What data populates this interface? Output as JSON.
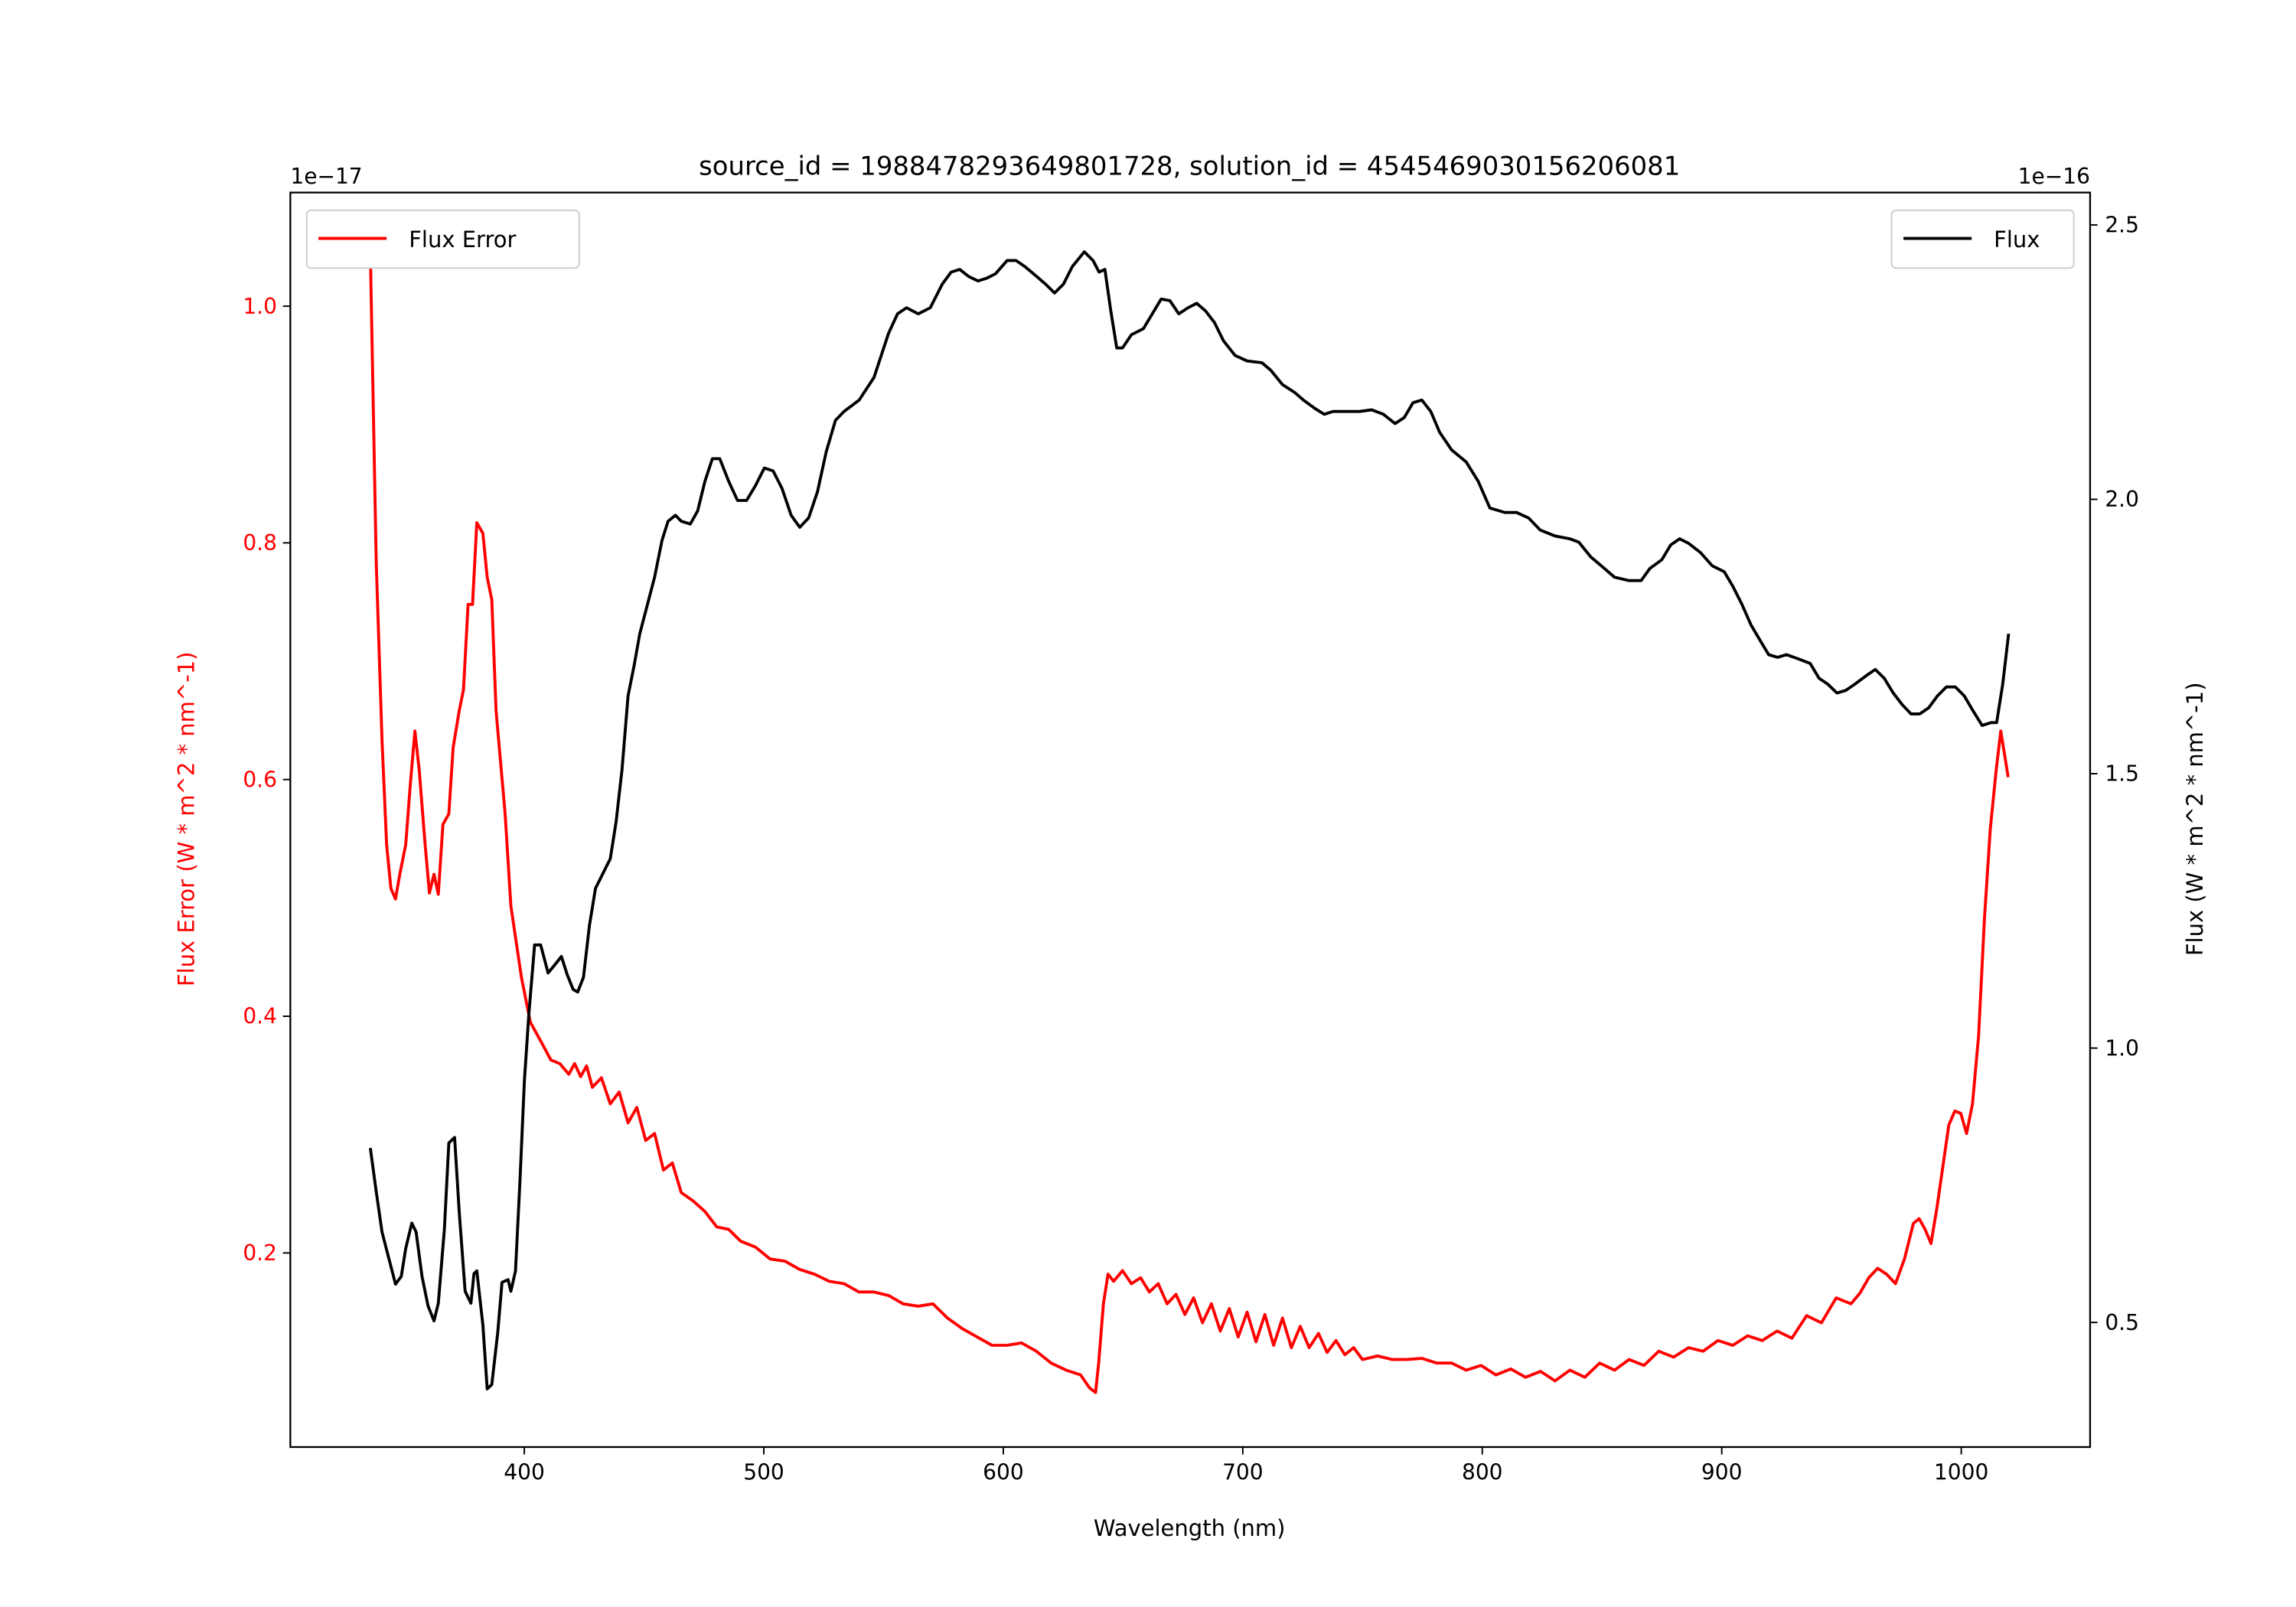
{
  "chart_data": {
    "type": "line",
    "title": "source_id = 1988478293649801728, solution_id = 4545469030156206081",
    "xlabel": "Wavelength (nm)",
    "ylabel_left": "Flux Error (W * m^2 * nm^-1)",
    "ylabel_right": "Flux (W * m^2 * nm^-1)",
    "left_offset_label": "1e−17",
    "right_offset_label": "1e−16",
    "xlim": [
      302.3,
      1053.8
    ],
    "ylim_left": [
      0.036,
      1.096
    ],
    "ylim_right": [
      0.273,
      2.559
    ],
    "xticks": [
      "400",
      "500",
      "600",
      "700",
      "800",
      "900",
      "1000"
    ],
    "yticks_left": [
      "0.2",
      "0.4",
      "0.6",
      "0.8",
      "1.0"
    ],
    "yticks_right": [
      "0.5",
      "1.0",
      "1.5",
      "2.0",
      "2.5"
    ],
    "grid": false,
    "colors": {
      "flux_error": "#ff0000",
      "flux": "#000000"
    },
    "legend_left": {
      "label": "Flux Error",
      "placement": "upper-left"
    },
    "legend_right": {
      "label": "Flux",
      "placement": "upper-right"
    },
    "series": [
      {
        "name": "Flux Error",
        "axis": "left",
        "color": "#ff0000",
        "x": [
          335.7,
          338.2,
          340.6,
          342.5,
          344.3,
          346.2,
          348.0,
          350.5,
          352.4,
          354.3,
          356.1,
          358.6,
          360.4,
          362.3,
          364.1,
          366.0,
          368.5,
          370.3,
          372.8,
          374.6,
          376.5,
          378.4,
          380.2,
          382.7,
          384.5,
          386.4,
          388.2,
          392.0,
          394.4,
          398.8,
          402.5,
          407.4,
          411.1,
          414.8,
          418.6,
          421.0,
          423.5,
          426.0,
          428.4,
          432.2,
          435.9,
          439.6,
          443.3,
          447.0,
          450.7,
          454.4,
          458.1,
          461.8,
          465.5,
          470.5,
          475.4,
          480.4,
          485.3,
          490.3,
          496.5,
          502.6,
          508.8,
          515.0,
          521.2,
          527.3,
          533.5,
          539.7,
          545.9,
          552.1,
          558.2,
          564.4,
          570.6,
          576.7,
          582.9,
          589.1,
          595.3,
          601.5,
          607.6,
          613.8,
          620.0,
          626.3,
          632.3,
          636.0,
          638.5,
          639.8,
          641.8,
          643.7,
          646.1,
          649.8,
          653.5,
          657.3,
          661.0,
          664.7,
          668.4,
          672.1,
          675.8,
          679.5,
          683.2,
          686.9,
          690.6,
          694.4,
          698.1,
          701.8,
          705.5,
          709.2,
          712.9,
          716.6,
          720.3,
          724.0,
          727.7,
          731.6,
          735.2,
          738.9,
          742.6,
          746.3,
          750.0,
          756.3,
          762.4,
          768.6,
          774.8,
          781.0,
          787.2,
          793.3,
          799.5,
          805.7,
          811.9,
          818.1,
          824.3,
          830.4,
          836.6,
          842.8,
          849.0,
          855.2,
          861.3,
          867.5,
          873.7,
          879.9,
          886.1,
          892.2,
          898.4,
          904.6,
          910.8,
          916.9,
          923.1,
          929.3,
          935.4,
          941.6,
          947.8,
          954.0,
          957.7,
          961.4,
          965.1,
          968.8,
          972.5,
          976.3,
          980.0,
          982.4,
          984.9,
          987.4,
          989.9,
          992.3,
          994.8,
          997.3,
          999.8,
          1002.2,
          1004.7,
          1007.2,
          1009.7,
          1012.1,
          1014.6,
          1016.5,
          1019.6
        ],
        "y": [
          1.046,
          0.783,
          0.633,
          0.545,
          0.508,
          0.499,
          0.52,
          0.545,
          0.596,
          0.641,
          0.608,
          0.545,
          0.504,
          0.52,
          0.503,
          0.562,
          0.571,
          0.627,
          0.658,
          0.676,
          0.748,
          0.748,
          0.817,
          0.808,
          0.771,
          0.752,
          0.658,
          0.571,
          0.493,
          0.433,
          0.395,
          0.377,
          0.363,
          0.36,
          0.351,
          0.36,
          0.349,
          0.358,
          0.34,
          0.348,
          0.326,
          0.336,
          0.31,
          0.323,
          0.295,
          0.301,
          0.27,
          0.276,
          0.251,
          0.244,
          0.235,
          0.222,
          0.22,
          0.21,
          0.205,
          0.195,
          0.193,
          0.186,
          0.182,
          0.176,
          0.174,
          0.167,
          0.167,
          0.164,
          0.157,
          0.155,
          0.157,
          0.145,
          0.136,
          0.129,
          0.122,
          0.122,
          0.124,
          0.117,
          0.107,
          0.101,
          0.097,
          0.086,
          0.082,
          0.107,
          0.157,
          0.182,
          0.176,
          0.185,
          0.174,
          0.179,
          0.167,
          0.174,
          0.157,
          0.165,
          0.148,
          0.162,
          0.141,
          0.157,
          0.134,
          0.153,
          0.129,
          0.15,
          0.125,
          0.148,
          0.122,
          0.145,
          0.12,
          0.138,
          0.12,
          0.132,
          0.116,
          0.126,
          0.114,
          0.12,
          0.11,
          0.113,
          0.11,
          0.11,
          0.111,
          0.107,
          0.107,
          0.101,
          0.105,
          0.097,
          0.102,
          0.095,
          0.1,
          0.092,
          0.101,
          0.095,
          0.107,
          0.101,
          0.11,
          0.105,
          0.117,
          0.112,
          0.12,
          0.117,
          0.126,
          0.122,
          0.13,
          0.126,
          0.134,
          0.128,
          0.147,
          0.141,
          0.162,
          0.157,
          0.166,
          0.179,
          0.187,
          0.182,
          0.174,
          0.195,
          0.225,
          0.229,
          0.22,
          0.208,
          0.239,
          0.273,
          0.308,
          0.32,
          0.318,
          0.301,
          0.326,
          0.383,
          0.483,
          0.558,
          0.608,
          0.641,
          0.602
        ]
      },
      {
        "name": "Flux",
        "axis": "right",
        "color": "#000000",
        "x": [
          335.7,
          338.2,
          340.6,
          343.1,
          346.2,
          348.6,
          350.5,
          353.0,
          354.8,
          357.3,
          359.8,
          362.3,
          364.1,
          366.6,
          368.5,
          370.9,
          372.8,
          375.3,
          377.7,
          379.0,
          380.2,
          382.7,
          384.5,
          386.4,
          388.9,
          390.7,
          393.2,
          394.4,
          396.3,
          398.1,
          400.0,
          401.9,
          404.3,
          406.8,
          409.9,
          412.4,
          415.5,
          417.9,
          420.4,
          422.3,
          424.7,
          427.2,
          429.7,
          432.8,
          435.9,
          438.3,
          440.8,
          443.3,
          445.8,
          448.2,
          450.7,
          454.4,
          457.5,
          460.0,
          463.1,
          465.5,
          469.3,
          472.4,
          475.4,
          478.5,
          481.6,
          485.3,
          489.0,
          492.8,
          496.5,
          500.2,
          503.9,
          507.6,
          511.4,
          515.0,
          518.7,
          522.4,
          526.1,
          529.9,
          533.5,
          539.8,
          546.0,
          552.1,
          555.8,
          559.6,
          564.5,
          569.5,
          574.5,
          578.2,
          581.8,
          585.6,
          589.4,
          593.1,
          596.8,
          601.6,
          605.3,
          609.0,
          614.0,
          617.7,
          621.4,
          625.1,
          628.8,
          633.8,
          637.5,
          640.0,
          642.4,
          644.9,
          647.4,
          649.8,
          653.5,
          658.5,
          662.2,
          665.9,
          669.6,
          673.3,
          677.1,
          680.8,
          684.5,
          688.2,
          691.9,
          696.8,
          701.8,
          708.0,
          711.7,
          716.6,
          721.6,
          725.3,
          730.3,
          734.0,
          737.7,
          743.9,
          748.8,
          753.8,
          758.7,
          763.6,
          767.4,
          771.1,
          774.8,
          778.5,
          782.2,
          787.2,
          793.3,
          798.3,
          803.2,
          809.4,
          814.3,
          819.3,
          824.2,
          830.4,
          836.6,
          840.3,
          845.3,
          850.2,
          855.2,
          861.3,
          866.3,
          870.0,
          875.0,
          878.7,
          882.4,
          886.1,
          891.1,
          896.0,
          901.0,
          904.7,
          908.4,
          912.2,
          915.9,
          919.6,
          923.3,
          927.0,
          932.0,
          936.9,
          940.6,
          944.3,
          948.1,
          951.8,
          955.5,
          960.4,
          964.1,
          967.8,
          971.6,
          975.3,
          979.0,
          982.7,
          986.4,
          990.1,
          993.8,
          997.5,
          1001.2,
          1004.9,
          1008.7,
          1012.4,
          1014.8,
          1017.3,
          1019.8
        ],
        "y": [
          0.818,
          0.738,
          0.665,
          0.622,
          0.57,
          0.584,
          0.635,
          0.681,
          0.665,
          0.584,
          0.53,
          0.503,
          0.535,
          0.67,
          0.827,
          0.837,
          0.702,
          0.557,
          0.535,
          0.589,
          0.594,
          0.495,
          0.379,
          0.387,
          0.481,
          0.573,
          0.578,
          0.557,
          0.594,
          0.751,
          0.94,
          1.061,
          1.188,
          1.188,
          1.137,
          1.15,
          1.167,
          1.134,
          1.107,
          1.102,
          1.129,
          1.223,
          1.291,
          1.318,
          1.345,
          1.412,
          1.507,
          1.642,
          1.696,
          1.755,
          1.796,
          1.858,
          1.925,
          1.96,
          1.971,
          1.96,
          1.955,
          1.979,
          2.033,
          2.074,
          2.074,
          2.033,
          1.998,
          1.998,
          2.025,
          2.057,
          2.052,
          2.02,
          1.971,
          1.949,
          1.966,
          2.014,
          2.087,
          2.144,
          2.16,
          2.181,
          2.222,
          2.303,
          2.338,
          2.349,
          2.338,
          2.349,
          2.392,
          2.414,
          2.419,
          2.406,
          2.398,
          2.403,
          2.411,
          2.435,
          2.435,
          2.424,
          2.406,
          2.392,
          2.376,
          2.392,
          2.424,
          2.451,
          2.435,
          2.414,
          2.419,
          2.343,
          2.276,
          2.276,
          2.3,
          2.311,
          2.338,
          2.365,
          2.362,
          2.338,
          2.349,
          2.357,
          2.343,
          2.322,
          2.289,
          2.262,
          2.252,
          2.249,
          2.235,
          2.209,
          2.195,
          2.181,
          2.165,
          2.155,
          2.16,
          2.16,
          2.16,
          2.163,
          2.155,
          2.138,
          2.149,
          2.176,
          2.181,
          2.16,
          2.122,
          2.09,
          2.068,
          2.033,
          1.984,
          1.976,
          1.976,
          1.966,
          1.944,
          1.933,
          1.928,
          1.922,
          1.895,
          1.877,
          1.858,
          1.852,
          1.852,
          1.874,
          1.89,
          1.917,
          1.928,
          1.92,
          1.903,
          1.879,
          1.868,
          1.841,
          1.809,
          1.771,
          1.744,
          1.717,
          1.712,
          1.717,
          1.709,
          1.701,
          1.674,
          1.663,
          1.647,
          1.652,
          1.663,
          1.679,
          1.69,
          1.674,
          1.647,
          1.626,
          1.609,
          1.609,
          1.62,
          1.642,
          1.658,
          1.658,
          1.642,
          1.615,
          1.588,
          1.593,
          1.593,
          1.663,
          1.755
        ]
      }
    ]
  }
}
